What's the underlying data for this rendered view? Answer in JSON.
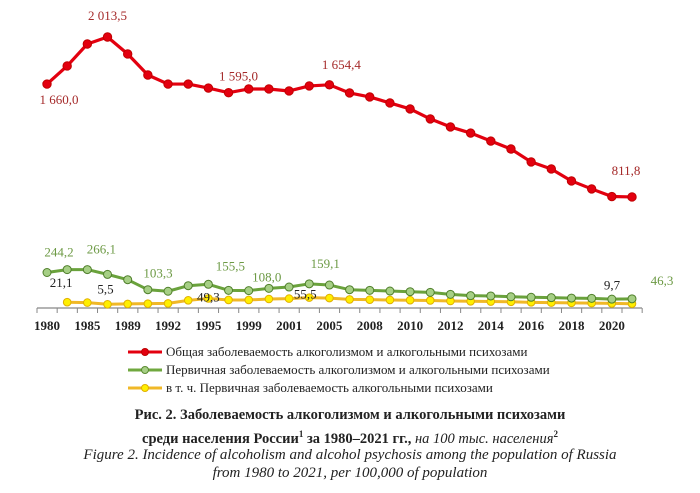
{
  "chart_data": {
    "type": "line",
    "title": "Рис. 2. Заболеваемость алкоголизмом и алкогольными психозами среди населения России за 1980–2021 гг., на 100 тыс. населения",
    "xlabel": "",
    "ylabel": "",
    "ylim": [
      0,
      2100
    ],
    "grid": false,
    "legend_placement": "bottom",
    "tick_labels": [
      "1980",
      "",
      "1985",
      "",
      "1989",
      "",
      "1992",
      "",
      "1995",
      "",
      "1999",
      "",
      "2001",
      "",
      "2005",
      "",
      "2008",
      "",
      "2010",
      "",
      "2012",
      "",
      "2014",
      "",
      "2016",
      "",
      "2018",
      "",
      "2020",
      ""
    ],
    "series": [
      {
        "name": "Общая заболеваемость алкоголизмом и алкогольными психозами",
        "color": "#e3000f",
        "values": [
          1660.0,
          1796,
          1961,
          2013.5,
          1886,
          1728,
          1660,
          1660,
          1630,
          1595.0,
          1623,
          1623,
          1608,
          1646,
          1654.4,
          1593,
          1563,
          1518,
          1473,
          1398,
          1338,
          1292,
          1232,
          1172,
          1075,
          1022,
          932,
          872,
          815,
          811.8
        ],
        "labels": [
          {
            "i": 0,
            "text": "1 660,0"
          },
          {
            "i": 3,
            "text": "2 013,5"
          },
          {
            "i": 9,
            "text": "1 595,0"
          },
          {
            "i": 14,
            "text": "1 654,4"
          },
          {
            "i": 29,
            "text": "811,8"
          }
        ]
      },
      {
        "name": "Первичная заболеваемость алкоголизмом и алкогольными психозами",
        "color": "#70a83f",
        "values": [
          244.2,
          266,
          266.1,
          230,
          190,
          115,
          103.3,
          145,
          155.5,
          110,
          108.0,
          125,
          135,
          159.1,
          150,
          115,
          110,
          105,
          100,
          95,
          80,
          70,
          68,
          62,
          58,
          55,
          52,
          50,
          44,
          46.3
        ],
        "labels": [
          {
            "i": 0,
            "text": "244,2"
          },
          {
            "i": 2,
            "text": "266,1"
          },
          {
            "i": 6,
            "text": "103,3"
          },
          {
            "i": 8,
            "text": "155,5"
          },
          {
            "i": 10,
            "text": "108,0"
          },
          {
            "i": 13,
            "text": "159,1"
          },
          {
            "i": 29,
            "text": "46,3"
          }
        ]
      },
      {
        "name": "в т. ч. Первичная заболеваемость алкогольными психозами",
        "color": "#f5c400",
        "values": [
          null,
          21.1,
          18,
          5.5,
          8,
          10,
          12,
          35,
          49.3,
          38,
          38,
          45,
          48,
          55.5,
          52,
          42,
          40,
          38,
          36,
          34,
          30,
          28,
          26,
          24,
          20,
          18,
          16,
          14,
          12,
          9.7
        ],
        "labels": [
          {
            "i": 1,
            "text": "21,1"
          },
          {
            "i": 3,
            "text": "5,5"
          },
          {
            "i": 8,
            "text": "49,3"
          },
          {
            "i": 13,
            "text": "55,5"
          },
          {
            "i": 29,
            "text": "9,7"
          }
        ]
      }
    ]
  },
  "caption": {
    "ru_line1": "Рис. 2. Заболеваемость алкоголизмом и алкогольными психозами",
    "ru_line2_bold": "среди населения России",
    "ru_sup1": "1",
    "ru_line2_bold_b": " за 1980–2021 гг., ",
    "ru_line2_italic": "на 100 тыс. населения",
    "ru_sup2": "2",
    "en_line1": "Figure 2. Incidence of alcoholism and alcohol psychosis among the population of Russia",
    "en_line2": "from 1980 to 2021, per 100,000 of population"
  }
}
